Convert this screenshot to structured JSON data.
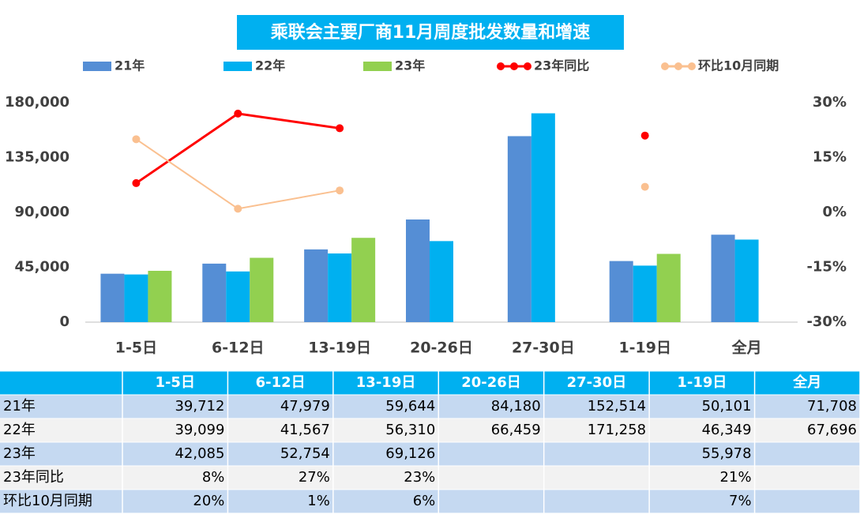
{
  "chart_data": {
    "type": "bar",
    "title": "乘联会主要厂商11月周度批发数量和增速",
    "categories": [
      "1-5日",
      "6-12日",
      "13-19日",
      "20-26日",
      "27-30日",
      "1-19日",
      "全月"
    ],
    "series": [
      {
        "name": "21年",
        "color": "#558ed5",
        "values": [
          39712,
          47979,
          59644,
          84180,
          152514,
          50101,
          71708
        ],
        "value_labels": [
          "39,712",
          "47,979",
          "59,644",
          "84,180",
          "152,514",
          "50,101",
          "71,708"
        ]
      },
      {
        "name": "22年",
        "color": "#00b0f0",
        "values": [
          39099,
          41567,
          56310,
          66459,
          171258,
          46349,
          67696
        ],
        "value_labels": [
          "39,099",
          "41,567",
          "56,310",
          "66,459",
          "171,258",
          "46,349",
          "67,696"
        ]
      },
      {
        "name": "23年",
        "color": "#92d050",
        "values": [
          42085,
          52754,
          69126,
          null,
          null,
          55978,
          null
        ],
        "value_labels": [
          "42,085",
          "52,754",
          "69,126",
          null,
          null,
          "55,978",
          null
        ]
      },
      {
        "name": "23年同比",
        "type": "line",
        "axis": "y2",
        "color": "#ff0000",
        "values": [
          8,
          27,
          23,
          null,
          null,
          21,
          null
        ],
        "value_labels": [
          "8%",
          "27%",
          "23%",
          null,
          null,
          "21%",
          null
        ]
      },
      {
        "name": "环比10月同期",
        "type": "line",
        "axis": "y2",
        "color": "#fac090",
        "values": [
          20,
          1,
          6,
          null,
          null,
          7,
          null
        ],
        "value_labels": [
          "20%",
          "1%",
          "6%",
          null,
          null,
          "7%",
          null
        ]
      }
    ],
    "ylim": [
      0,
      180000
    ],
    "yticks": [
      0,
      {
        "value": 45000,
        "label": "45,000"
      },
      {
        "value": 90000,
        "label": "90,000"
      },
      {
        "value": 135000,
        "label": "135,000"
      },
      {
        "value": 180000,
        "label": "180,000"
      }
    ],
    "y2lim": [
      -30,
      30
    ],
    "y2ticks": [
      {
        "value": -30,
        "label": "-30%"
      },
      {
        "value": -15,
        "label": "-15%"
      },
      {
        "value": 0,
        "label": "0%"
      },
      {
        "value": 15,
        "label": "15%"
      },
      {
        "value": 30,
        "label": "30%"
      }
    ],
    "grid": false
  }
}
